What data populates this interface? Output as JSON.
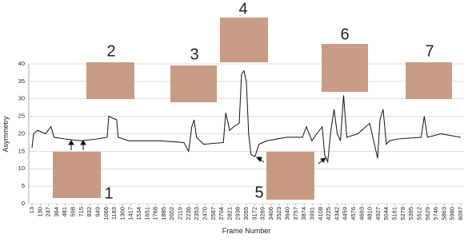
{
  "chart_data": {
    "type": "line",
    "y_label": "Asymmetry",
    "x_label": "Frame Number",
    "xlim": [
      13,
      6097
    ],
    "ylim": [
      0,
      40
    ],
    "yticks": [
      0,
      5,
      10,
      15,
      20,
      25,
      30,
      35,
      40
    ],
    "xticks": [
      13,
      130,
      247,
      364,
      481,
      598,
      715,
      832,
      949,
      1066,
      1183,
      1300,
      1417,
      1534,
      1651,
      1768,
      1885,
      2002,
      2119,
      2236,
      2353,
      2470,
      2587,
      2704,
      2821,
      2938,
      3055,
      3172,
      3289,
      3406,
      3523,
      3640,
      3757,
      3874,
      3991,
      4108,
      4225,
      4342,
      4459,
      4576,
      4693,
      4810,
      4927,
      5044,
      5161,
      5278,
      5395,
      5512,
      5629,
      5746,
      5863,
      5980,
      6097
    ],
    "grid": true,
    "series": [
      {
        "name": "Asymmetry",
        "color": "#111111",
        "x": [
          13,
          35,
          92,
          204,
          282,
          327,
          484,
          709,
          933,
          1079,
          1102,
          1214,
          1236,
          1382,
          1831,
          2167,
          2235,
          2280,
          2313,
          2347,
          2448,
          2728,
          2762,
          2818,
          2874,
          2953,
          2986,
          3020,
          3054,
          3087,
          3121,
          3177,
          3233,
          3345,
          3626,
          3850,
          3906,
          3985,
          4052,
          4131,
          4165,
          4209,
          4254,
          4299,
          4344,
          4389,
          4434,
          4479,
          4636,
          4804,
          4860,
          4917,
          4950,
          4995,
          5040,
          5085,
          5197,
          5534,
          5579,
          5624,
          5814,
          6094
        ],
        "values": [
          16,
          20,
          21,
          20,
          22,
          19,
          18.5,
          18,
          18.5,
          19,
          25,
          24,
          19,
          18,
          18,
          17.5,
          15,
          22,
          24,
          19,
          17,
          17.5,
          26,
          21,
          22,
          23,
          37,
          38,
          35,
          20,
          14,
          13.5,
          17,
          18,
          19,
          19,
          22,
          18,
          20,
          22,
          14,
          12,
          21,
          27,
          20,
          18,
          31,
          19,
          20,
          23,
          18,
          13,
          24,
          27,
          17,
          18,
          18.5,
          19,
          25,
          19,
          20,
          19
        ]
      }
    ],
    "annotations": [
      "1",
      "2",
      "3",
      "4",
      "5",
      "6",
      "7"
    ]
  }
}
